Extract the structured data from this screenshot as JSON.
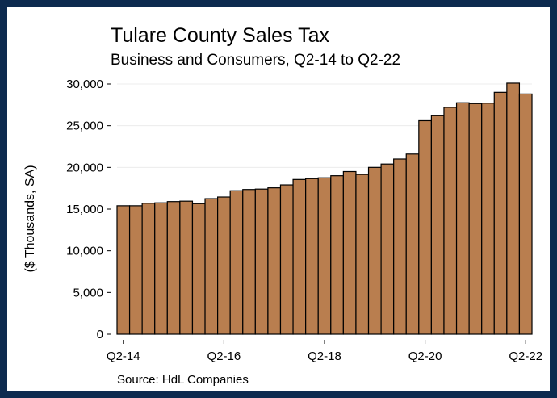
{
  "colors": {
    "frame": "#0d2a4f",
    "bar": "#b97e4f",
    "bar_edge": "#000000",
    "grid": "#ececec"
  },
  "chart_data": {
    "type": "bar",
    "title": "Tulare County Sales Tax",
    "subtitle": "Business and Consumers, Q2-14 to Q2-22",
    "ylabel": "($ Thousands, SA)",
    "xlabel": "",
    "source": "Source: HdL Companies",
    "ylim": [
      0,
      30000
    ],
    "yticks": [
      0,
      5000,
      10000,
      15000,
      20000,
      25000,
      30000
    ],
    "ytick_labels": [
      "0",
      "5,000",
      "10,000",
      "15,000",
      "20,000",
      "25,000",
      "30,000"
    ],
    "grid": true,
    "categories": [
      "Q2-14",
      "Q3-14",
      "Q4-14",
      "Q1-15",
      "Q2-15",
      "Q3-15",
      "Q4-15",
      "Q1-16",
      "Q2-16",
      "Q3-16",
      "Q4-16",
      "Q1-17",
      "Q2-17",
      "Q3-17",
      "Q4-17",
      "Q1-18",
      "Q2-18",
      "Q3-18",
      "Q4-18",
      "Q1-19",
      "Q2-19",
      "Q3-19",
      "Q4-19",
      "Q1-20",
      "Q2-20",
      "Q3-20",
      "Q4-20",
      "Q1-21",
      "Q2-21",
      "Q3-21",
      "Q4-21",
      "Q1-22",
      "Q2-22"
    ],
    "xtick_labels": [
      "Q2-14",
      "Q2-16",
      "Q2-18",
      "Q2-20",
      "Q2-22"
    ],
    "values": [
      15400,
      15400,
      15700,
      15750,
      15900,
      15950,
      15650,
      16250,
      16450,
      17200,
      17350,
      17400,
      17550,
      17900,
      18550,
      18650,
      18750,
      19000,
      19500,
      19150,
      20000,
      20400,
      21000,
      21600,
      25600,
      26200,
      27200,
      27750,
      27650,
      27700,
      29000,
      30100,
      28800
    ]
  }
}
